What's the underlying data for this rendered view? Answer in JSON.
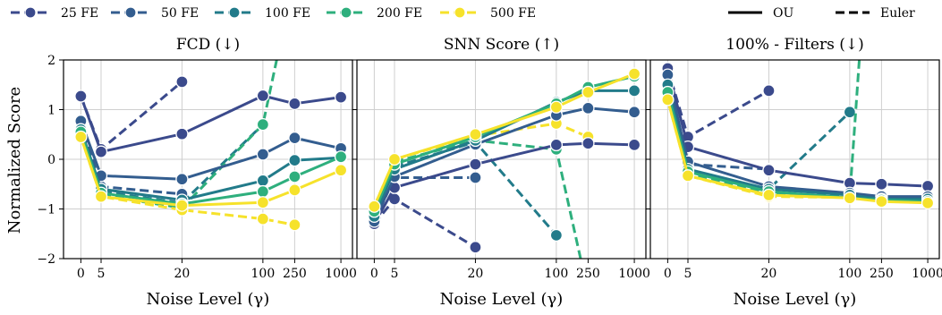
{
  "chart_data": {
    "type": "line",
    "x_categories": [
      "0",
      "5",
      "20",
      "100",
      "250",
      "1000"
    ],
    "xlabel": "Noise Level (γ)",
    "ylabel": "Normalized Score",
    "ylim": [
      -2,
      2
    ],
    "yticks": [
      "2",
      "1",
      "0",
      "−1",
      "−2"
    ],
    "grid": true,
    "legend": {
      "placement": "top",
      "series": [
        {
          "label": "25 FE",
          "color": "#3b4a8c"
        },
        {
          "label": "50 FE",
          "color": "#335d8f"
        },
        {
          "label": "100 FE",
          "color": "#227b8a"
        },
        {
          "label": "200 FE",
          "color": "#2eaf7d"
        },
        {
          "label": "500 FE",
          "color": "#f6e22b"
        }
      ],
      "styles": [
        {
          "label": "OU",
          "dash": "solid"
        },
        {
          "label": "Euler",
          "dash": "dashed"
        }
      ]
    },
    "panels": [
      {
        "title": "FCD (↓)",
        "series": [
          {
            "color": "#3b4a8c",
            "style": "solid",
            "points": [
              [
                0,
                1.27
              ],
              [
                5,
                0.15
              ],
              [
                20,
                0.51
              ],
              [
                100,
                1.28
              ],
              [
                250,
                1.12
              ],
              [
                1000,
                1.25
              ]
            ]
          },
          {
            "color": "#3b4a8c",
            "style": "dashed",
            "points": [
              [
                0,
                1.27
              ],
              [
                5,
                0.2
              ],
              [
                20,
                1.56
              ]
            ]
          },
          {
            "color": "#335d8f",
            "style": "solid",
            "points": [
              [
                0,
                0.77
              ],
              [
                5,
                -0.33
              ],
              [
                20,
                -0.4
              ],
              [
                100,
                0.1
              ],
              [
                250,
                0.43
              ],
              [
                1000,
                0.22
              ]
            ]
          },
          {
            "color": "#335d8f",
            "style": "dashed",
            "points": [
              [
                0,
                0.77
              ],
              [
                5,
                -0.55
              ],
              [
                20,
                -0.7
              ]
            ]
          },
          {
            "color": "#227b8a",
            "style": "solid",
            "points": [
              [
                0,
                0.6
              ],
              [
                5,
                -0.6
              ],
              [
                20,
                -0.82
              ],
              [
                100,
                -0.43
              ],
              [
                250,
                -0.02
              ],
              [
                1000,
                0.03
              ]
            ]
          },
          {
            "color": "#227b8a",
            "style": "dashed",
            "points": [
              [
                0,
                0.6
              ],
              [
                5,
                -0.65
              ],
              [
                20,
                -0.88
              ],
              [
                100,
                0.7
              ]
            ]
          },
          {
            "color": "#2eaf7d",
            "style": "solid",
            "points": [
              [
                0,
                0.55
              ],
              [
                5,
                -0.68
              ],
              [
                20,
                -0.9
              ],
              [
                100,
                -0.65
              ],
              [
                250,
                -0.35
              ],
              [
                1000,
                0.05
              ]
            ]
          },
          {
            "color": "#2eaf7d",
            "style": "dashed",
            "points": [
              [
                0,
                0.55
              ],
              [
                5,
                -0.72
              ],
              [
                20,
                -0.98
              ],
              [
                100,
                0.7
              ],
              [
                180,
                2.3
              ]
            ]
          },
          {
            "color": "#f6e22b",
            "style": "solid",
            "points": [
              [
                0,
                0.45
              ],
              [
                5,
                -0.75
              ],
              [
                20,
                -0.93
              ],
              [
                100,
                -0.87
              ],
              [
                250,
                -0.62
              ],
              [
                1000,
                -0.22
              ]
            ]
          },
          {
            "color": "#f6e22b",
            "style": "dashed",
            "points": [
              [
                0,
                0.45
              ],
              [
                5,
                -0.75
              ],
              [
                20,
                -1.02
              ],
              [
                100,
                -1.2
              ],
              [
                250,
                -1.32
              ]
            ]
          }
        ]
      },
      {
        "title": "SNN Score (↑)",
        "series": [
          {
            "color": "#3b4a8c",
            "style": "solid",
            "points": [
              [
                0,
                -1.3
              ],
              [
                5,
                -0.57
              ],
              [
                20,
                -0.1
              ],
              [
                100,
                0.29
              ],
              [
                250,
                0.32
              ],
              [
                1000,
                0.29
              ]
            ]
          },
          {
            "color": "#3b4a8c",
            "style": "dashed",
            "points": [
              [
                0,
                -1.3
              ],
              [
                5,
                -0.8
              ],
              [
                20,
                -1.77
              ]
            ]
          },
          {
            "color": "#335d8f",
            "style": "solid",
            "points": [
              [
                0,
                -1.25
              ],
              [
                5,
                -0.35
              ],
              [
                20,
                0.3
              ],
              [
                100,
                0.89
              ],
              [
                250,
                1.03
              ],
              [
                1000,
                0.95
              ]
            ]
          },
          {
            "color": "#335d8f",
            "style": "dashed",
            "points": [
              [
                0,
                -1.25
              ],
              [
                5,
                -0.37
              ],
              [
                20,
                -0.37
              ]
            ]
          },
          {
            "color": "#227b8a",
            "style": "solid",
            "points": [
              [
                0,
                -1.15
              ],
              [
                5,
                -0.2
              ],
              [
                20,
                0.38
              ],
              [
                100,
                1.15
              ],
              [
                250,
                1.38
              ],
              [
                1000,
                1.38
              ]
            ]
          },
          {
            "color": "#227b8a",
            "style": "dashed",
            "points": [
              [
                0,
                -1.15
              ],
              [
                5,
                -0.15
              ],
              [
                20,
                0.35
              ],
              [
                100,
                -1.53
              ]
            ]
          },
          {
            "color": "#2eaf7d",
            "style": "solid",
            "points": [
              [
                0,
                -1.05
              ],
              [
                5,
                -0.1
              ],
              [
                20,
                0.45
              ],
              [
                100,
                1.12
              ],
              [
                250,
                1.45
              ],
              [
                1000,
                1.67
              ]
            ]
          },
          {
            "color": "#2eaf7d",
            "style": "dashed",
            "points": [
              [
                0,
                -1.05
              ],
              [
                5,
                -0.05
              ],
              [
                20,
                0.38
              ],
              [
                100,
                0.2
              ],
              [
                230,
                -2.3
              ]
            ]
          },
          {
            "color": "#f6e22b",
            "style": "solid",
            "points": [
              [
                0,
                -0.95
              ],
              [
                5,
                0.0
              ],
              [
                20,
                0.5
              ],
              [
                100,
                1.05
              ],
              [
                250,
                1.35
              ],
              [
                1000,
                1.72
              ]
            ]
          },
          {
            "color": "#f6e22b",
            "style": "dashed",
            "points": [
              [
                0,
                -0.95
              ],
              [
                5,
                0.0
              ],
              [
                20,
                0.47
              ],
              [
                100,
                0.72
              ],
              [
                250,
                0.45
              ]
            ]
          }
        ]
      },
      {
        "title": "100% - Filters (↓)",
        "series": [
          {
            "color": "#3b4a8c",
            "style": "solid",
            "points": [
              [
                0,
                1.83
              ],
              [
                5,
                0.25
              ],
              [
                20,
                -0.22
              ],
              [
                100,
                -0.48
              ],
              [
                250,
                -0.5
              ],
              [
                1000,
                -0.54
              ]
            ]
          },
          {
            "color": "#3b4a8c",
            "style": "dashed",
            "points": [
              [
                0,
                1.83
              ],
              [
                5,
                0.45
              ],
              [
                20,
                1.38
              ]
            ]
          },
          {
            "color": "#335d8f",
            "style": "solid",
            "points": [
              [
                0,
                1.7
              ],
              [
                5,
                -0.05
              ],
              [
                20,
                -0.55
              ],
              [
                100,
                -0.68
              ],
              [
                250,
                -0.75
              ],
              [
                1000,
                -0.75
              ]
            ]
          },
          {
            "color": "#335d8f",
            "style": "dashed",
            "points": [
              [
                0,
                1.7
              ],
              [
                5,
                -0.1
              ],
              [
                20,
                -0.2
              ]
            ]
          },
          {
            "color": "#227b8a",
            "style": "solid",
            "points": [
              [
                0,
                1.5
              ],
              [
                5,
                -0.2
              ],
              [
                20,
                -0.6
              ],
              [
                100,
                -0.72
              ],
              [
                250,
                -0.8
              ],
              [
                1000,
                -0.8
              ]
            ]
          },
          {
            "color": "#227b8a",
            "style": "dashed",
            "points": [
              [
                0,
                1.5
              ],
              [
                5,
                -0.25
              ],
              [
                20,
                -0.6
              ],
              [
                100,
                0.95
              ]
            ]
          },
          {
            "color": "#2eaf7d",
            "style": "solid",
            "points": [
              [
                0,
                1.35
              ],
              [
                5,
                -0.25
              ],
              [
                20,
                -0.65
              ],
              [
                100,
                -0.78
              ],
              [
                250,
                -0.82
              ],
              [
                1000,
                -0.85
              ]
            ]
          },
          {
            "color": "#2eaf7d",
            "style": "dashed",
            "points": [
              [
                0,
                1.35
              ],
              [
                5,
                -0.28
              ],
              [
                20,
                -0.68
              ],
              [
                100,
                -0.75
              ],
              [
                150,
                2.3
              ]
            ]
          },
          {
            "color": "#f6e22b",
            "style": "solid",
            "points": [
              [
                0,
                1.2
              ],
              [
                5,
                -0.33
              ],
              [
                20,
                -0.72
              ],
              [
                100,
                -0.78
              ],
              [
                250,
                -0.85
              ],
              [
                1000,
                -0.88
              ]
            ]
          },
          {
            "color": "#f6e22b",
            "style": "dashed",
            "points": [
              [
                0,
                1.2
              ],
              [
                5,
                -0.33
              ],
              [
                20,
                -0.75
              ],
              [
                100,
                -0.77
              ],
              [
                250,
                -0.78
              ]
            ]
          }
        ]
      }
    ]
  }
}
